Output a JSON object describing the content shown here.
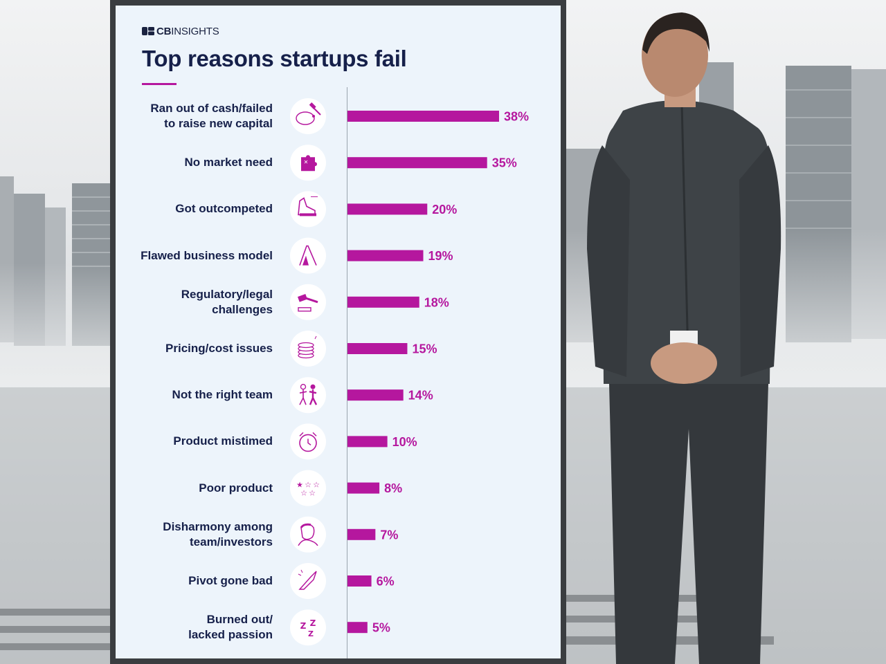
{
  "brand": {
    "prefix": "CB",
    "suffix": "INSIGHTS"
  },
  "colors": {
    "accent": "#b5179e",
    "title": "#16204a",
    "card_bg": "#edf4fb"
  },
  "chart_data": {
    "type": "bar",
    "orientation": "horizontal",
    "title": "Top reasons startups fail",
    "unit": "%",
    "xlim": [
      0,
      38
    ],
    "grid": false,
    "categories": [
      "Ran out of cash/failed to raise new capital",
      "No market need",
      "Got outcompeted",
      "Flawed business model",
      "Regulatory/legal challenges",
      "Pricing/cost issues",
      "Not the right team",
      "Product mistimed",
      "Poor product",
      "Disharmony among team/investors",
      "Pivot gone bad",
      "Burned out/ lacked passion"
    ],
    "label_lines": [
      [
        "Ran out of cash/failed",
        "to raise new capital"
      ],
      [
        "No market need"
      ],
      [
        "Got outcompeted"
      ],
      [
        "Flawed business model"
      ],
      [
        "Regulatory/legal",
        "challenges"
      ],
      [
        "Pricing/cost issues"
      ],
      [
        "Not the right team"
      ],
      [
        "Product mistimed"
      ],
      [
        "Poor product"
      ],
      [
        "Disharmony among",
        "team/investors"
      ],
      [
        "Pivot gone bad"
      ],
      [
        "Burned out/",
        "lacked passion"
      ]
    ],
    "values": [
      38,
      35,
      20,
      19,
      18,
      15,
      14,
      10,
      8,
      7,
      6,
      5
    ],
    "value_labels": [
      "38%",
      "35%",
      "20%",
      "19%",
      "18%",
      "15%",
      "14%",
      "10%",
      "8%",
      "7%",
      "6%",
      "5%"
    ],
    "icons": [
      "piggy-bank-hammer-icon",
      "puzzle-piece-icon",
      "running-shoe-icon",
      "house-of-cards-icon",
      "gavel-icon",
      "coin-stack-icon",
      "team-conflict-icon",
      "alarm-clock-icon",
      "star-rating-icon",
      "frustrated-person-icon",
      "broken-pivot-icon",
      "sleep-zzz-icon"
    ]
  }
}
